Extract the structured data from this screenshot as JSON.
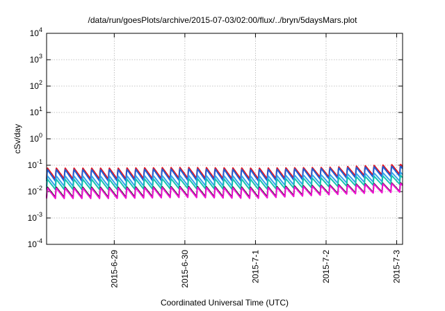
{
  "chart_data": {
    "type": "line",
    "title": "/data/run/goesPlots/archive/2015-07-03/02:00/flux/../bryn/5daysMars.plot",
    "xlabel": "Coordinated Universal Time (UTC)",
    "ylabel": "cSv/day",
    "yscale": "log",
    "ylim": [
      0.0001,
      10000
    ],
    "xlim": [
      "2015-06-28T01:00",
      "2015-07-03T02:00"
    ],
    "grid": true,
    "ytick_labels": [
      {
        "base": "10",
        "exp": "-4"
      },
      {
        "base": "10",
        "exp": "-3"
      },
      {
        "base": "10",
        "exp": "-2"
      },
      {
        "base": "10",
        "exp": "-1"
      },
      {
        "base": "10",
        "exp": "0"
      },
      {
        "base": "10",
        "exp": "1"
      },
      {
        "base": "10",
        "exp": "2"
      },
      {
        "base": "10",
        "exp": "3"
      },
      {
        "base": "10",
        "exp": "4"
      }
    ],
    "x": [
      "2015-06-29",
      "2015-06-30",
      "2015-07-01",
      "2015-07-02",
      "2015-07-03"
    ],
    "xtick_labels": [
      "2015-6-29",
      "2015-6-30",
      "2015-7-1",
      "2015-7-2",
      "2015-7-3"
    ],
    "series": [
      {
        "color": "#e8141e",
        "peak_values": [
          0.08,
          0.085,
          0.08,
          0.085,
          0.11
        ],
        "trough_values": [
          0.03,
          0.032,
          0.03,
          0.035,
          0.045
        ]
      },
      {
        "color": "#1f5fd6",
        "peak_values": [
          0.07,
          0.075,
          0.07,
          0.078,
          0.095
        ],
        "trough_values": [
          0.025,
          0.027,
          0.025,
          0.03,
          0.038
        ]
      },
      {
        "color": "#36a3ea",
        "peak_values": [
          0.04,
          0.042,
          0.04,
          0.045,
          0.055
        ],
        "trough_values": [
          0.016,
          0.017,
          0.016,
          0.02,
          0.025
        ]
      },
      {
        "color": "#16c2b2",
        "peak_values": [
          0.03,
          0.032,
          0.03,
          0.034,
          0.042
        ],
        "trough_values": [
          0.012,
          0.013,
          0.012,
          0.015,
          0.019
        ]
      },
      {
        "color": "#222222",
        "peak_values": [
          0.015,
          0.016,
          0.015,
          0.018,
          0.022
        ],
        "trough_values": [
          0.006,
          0.0065,
          0.006,
          0.008,
          0.01
        ]
      },
      {
        "color": "#f014d2",
        "peak_values": [
          0.014,
          0.015,
          0.014,
          0.017,
          0.021
        ],
        "trough_values": [
          0.0055,
          0.006,
          0.0055,
          0.0075,
          0.0095
        ]
      }
    ]
  }
}
